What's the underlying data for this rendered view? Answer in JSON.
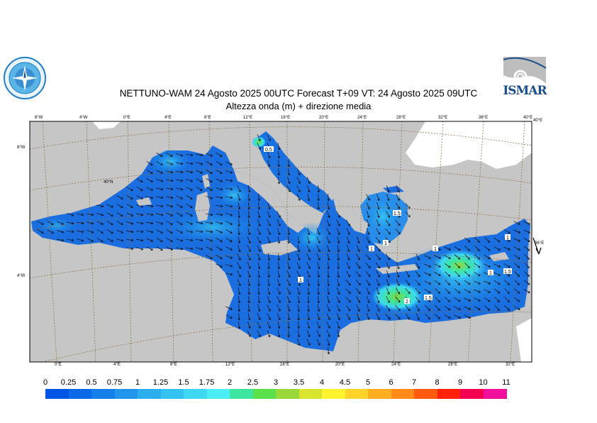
{
  "title_line1": "NETTUNO-WAM  24   Agosto  2025 00UTC Forecast T+09 VT: 24   Agosto  2025 09UTC",
  "title_line2": "Altezza onda (m) + direzione media",
  "logo_right_text": "ISMAR",
  "top_ticks": [
    "8°W",
    "4°W",
    "0°E",
    "4°E",
    "8°E",
    "12°E",
    "16°E",
    "20°E",
    "24°E",
    "28°E",
    "32°E",
    "36°E",
    "40°E"
  ],
  "bottom_ticks": [
    "0°E",
    "4°E",
    "8°E",
    "12°E",
    "16°E",
    "20°E",
    "24°E",
    "28°E",
    "32°E"
  ],
  "left_ticks": [
    "8°W",
    "40°N",
    "4°W"
  ],
  "right_ticks": [
    "40°E",
    "36°E"
  ],
  "contour_labels": [
    "0.5",
    "1",
    "1.5",
    "1",
    "1",
    "1.5",
    "1",
    "2",
    "1.5",
    "1",
    "1"
  ],
  "colorbar": {
    "labels": [
      "0",
      "0.25",
      "0.5",
      "0.75",
      "1",
      "1.25",
      "1.5",
      "1.75",
      "2",
      "2.5",
      "3",
      "3.5",
      "4",
      "4.5",
      "5",
      "6",
      "7",
      "8",
      "9",
      "10",
      "11"
    ],
    "colors": [
      "#0055e6",
      "#0a6ae8",
      "#1680ea",
      "#2196ec",
      "#2badee",
      "#35c2f0",
      "#3fd8f2",
      "#4aeef4",
      "#3de6a0",
      "#5ae04a",
      "#9ad83a",
      "#d8e42e",
      "#fff22e",
      "#ffd42a",
      "#ffae22",
      "#ff8a1a",
      "#ff5a10",
      "#ff2208",
      "#f50050",
      "#f0109c"
    ]
  },
  "colors": {
    "land": "#c6c6c6",
    "grid": "#8a6a3c",
    "sea_base": "#1a6ee0"
  }
}
